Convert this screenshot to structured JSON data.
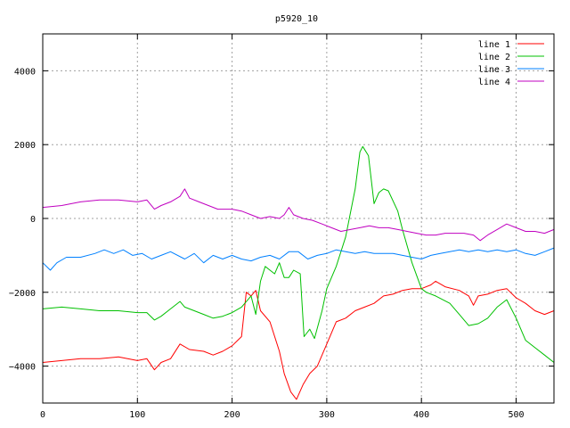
{
  "chart_data": {
    "type": "line",
    "title": "p5920_10",
    "xlabel": "",
    "ylabel": "",
    "xlim": [
      0,
      540
    ],
    "ylim": [
      -5000,
      5000
    ],
    "xticks": [
      0,
      100,
      200,
      300,
      400,
      500
    ],
    "yticks": [
      4000,
      2000,
      0,
      -2000,
      -4000
    ],
    "ytick_labels": [
      "4000",
      "2000",
      "0",
      "−2000",
      "−4000"
    ],
    "grid": true,
    "legend_position": "top-right",
    "series": [
      {
        "name": "line 1",
        "color": "#ff0000",
        "points": [
          [
            0,
            -3900
          ],
          [
            20,
            -3850
          ],
          [
            40,
            -3800
          ],
          [
            60,
            -3800
          ],
          [
            80,
            -3750
          ],
          [
            100,
            -3850
          ],
          [
            110,
            -3800
          ],
          [
            118,
            -4100
          ],
          [
            125,
            -3900
          ],
          [
            135,
            -3800
          ],
          [
            145,
            -3400
          ],
          [
            155,
            -3550
          ],
          [
            170,
            -3600
          ],
          [
            180,
            -3700
          ],
          [
            190,
            -3600
          ],
          [
            200,
            -3450
          ],
          [
            210,
            -3200
          ],
          [
            215,
            -2000
          ],
          [
            220,
            -2100
          ],
          [
            225,
            -1950
          ],
          [
            230,
            -2500
          ],
          [
            240,
            -2800
          ],
          [
            250,
            -3600
          ],
          [
            255,
            -4200
          ],
          [
            262,
            -4700
          ],
          [
            268,
            -4900
          ],
          [
            275,
            -4500
          ],
          [
            282,
            -4200
          ],
          [
            290,
            -4000
          ],
          [
            300,
            -3400
          ],
          [
            310,
            -2800
          ],
          [
            320,
            -2700
          ],
          [
            330,
            -2500
          ],
          [
            340,
            -2400
          ],
          [
            350,
            -2300
          ],
          [
            360,
            -2100
          ],
          [
            370,
            -2050
          ],
          [
            380,
            -1950
          ],
          [
            390,
            -1900
          ],
          [
            400,
            -1900
          ],
          [
            410,
            -1800
          ],
          [
            415,
            -1700
          ],
          [
            425,
            -1850
          ],
          [
            440,
            -1950
          ],
          [
            450,
            -2100
          ],
          [
            455,
            -2350
          ],
          [
            460,
            -2100
          ],
          [
            470,
            -2050
          ],
          [
            480,
            -1950
          ],
          [
            490,
            -1900
          ],
          [
            500,
            -2150
          ],
          [
            510,
            -2300
          ],
          [
            520,
            -2500
          ],
          [
            530,
            -2600
          ],
          [
            540,
            -2500
          ]
        ]
      },
      {
        "name": "line 2",
        "color": "#00c000",
        "points": [
          [
            0,
            -2450
          ],
          [
            20,
            -2400
          ],
          [
            40,
            -2450
          ],
          [
            60,
            -2500
          ],
          [
            80,
            -2500
          ],
          [
            100,
            -2550
          ],
          [
            110,
            -2550
          ],
          [
            118,
            -2750
          ],
          [
            125,
            -2650
          ],
          [
            135,
            -2450
          ],
          [
            145,
            -2250
          ],
          [
            150,
            -2400
          ],
          [
            160,
            -2500
          ],
          [
            170,
            -2600
          ],
          [
            180,
            -2700
          ],
          [
            190,
            -2650
          ],
          [
            200,
            -2550
          ],
          [
            210,
            -2400
          ],
          [
            220,
            -2100
          ],
          [
            225,
            -2600
          ],
          [
            230,
            -1700
          ],
          [
            235,
            -1300
          ],
          [
            240,
            -1400
          ],
          [
            245,
            -1500
          ],
          [
            250,
            -1200
          ],
          [
            255,
            -1600
          ],
          [
            260,
            -1600
          ],
          [
            265,
            -1400
          ],
          [
            272,
            -1500
          ],
          [
            276,
            -3200
          ],
          [
            282,
            -3000
          ],
          [
            287,
            -3250
          ],
          [
            295,
            -2500
          ],
          [
            300,
            -1900
          ],
          [
            310,
            -1300
          ],
          [
            320,
            -500
          ],
          [
            330,
            800
          ],
          [
            335,
            1800
          ],
          [
            338,
            1950
          ],
          [
            344,
            1700
          ],
          [
            350,
            400
          ],
          [
            355,
            700
          ],
          [
            360,
            800
          ],
          [
            365,
            750
          ],
          [
            375,
            200
          ],
          [
            380,
            -300
          ],
          [
            390,
            -1200
          ],
          [
            400,
            -1900
          ],
          [
            405,
            -2000
          ],
          [
            415,
            -2100
          ],
          [
            430,
            -2300
          ],
          [
            440,
            -2600
          ],
          [
            450,
            -2900
          ],
          [
            460,
            -2850
          ],
          [
            470,
            -2700
          ],
          [
            480,
            -2400
          ],
          [
            490,
            -2200
          ],
          [
            500,
            -2700
          ],
          [
            510,
            -3300
          ],
          [
            520,
            -3500
          ],
          [
            530,
            -3700
          ],
          [
            540,
            -3900
          ]
        ]
      },
      {
        "name": "line 3",
        "color": "#0080ff",
        "points": [
          [
            0,
            -1200
          ],
          [
            8,
            -1400
          ],
          [
            15,
            -1200
          ],
          [
            25,
            -1050
          ],
          [
            40,
            -1050
          ],
          [
            55,
            -950
          ],
          [
            65,
            -850
          ],
          [
            75,
            -950
          ],
          [
            85,
            -850
          ],
          [
            95,
            -1000
          ],
          [
            105,
            -950
          ],
          [
            115,
            -1100
          ],
          [
            125,
            -1000
          ],
          [
            135,
            -900
          ],
          [
            150,
            -1100
          ],
          [
            160,
            -950
          ],
          [
            170,
            -1200
          ],
          [
            180,
            -1000
          ],
          [
            190,
            -1100
          ],
          [
            200,
            -1000
          ],
          [
            210,
            -1100
          ],
          [
            220,
            -1150
          ],
          [
            230,
            -1050
          ],
          [
            240,
            -1000
          ],
          [
            250,
            -1100
          ],
          [
            260,
            -900
          ],
          [
            270,
            -900
          ],
          [
            280,
            -1100
          ],
          [
            290,
            -1000
          ],
          [
            300,
            -950
          ],
          [
            310,
            -850
          ],
          [
            320,
            -900
          ],
          [
            330,
            -950
          ],
          [
            340,
            -900
          ],
          [
            350,
            -950
          ],
          [
            360,
            -950
          ],
          [
            370,
            -950
          ],
          [
            380,
            -1000
          ],
          [
            390,
            -1050
          ],
          [
            400,
            -1100
          ],
          [
            410,
            -1000
          ],
          [
            420,
            -950
          ],
          [
            430,
            -900
          ],
          [
            440,
            -850
          ],
          [
            450,
            -900
          ],
          [
            460,
            -850
          ],
          [
            470,
            -900
          ],
          [
            480,
            -850
          ],
          [
            490,
            -900
          ],
          [
            500,
            -850
          ],
          [
            510,
            -950
          ],
          [
            520,
            -1000
          ],
          [
            530,
            -900
          ],
          [
            540,
            -800
          ]
        ]
      },
      {
        "name": "line 4",
        "color": "#c000c0",
        "points": [
          [
            0,
            300
          ],
          [
            20,
            350
          ],
          [
            40,
            450
          ],
          [
            60,
            500
          ],
          [
            80,
            500
          ],
          [
            100,
            450
          ],
          [
            110,
            500
          ],
          [
            118,
            250
          ],
          [
            125,
            350
          ],
          [
            135,
            450
          ],
          [
            145,
            600
          ],
          [
            150,
            800
          ],
          [
            155,
            550
          ],
          [
            165,
            450
          ],
          [
            175,
            350
          ],
          [
            185,
            250
          ],
          [
            200,
            250
          ],
          [
            210,
            200
          ],
          [
            220,
            100
          ],
          [
            230,
            0
          ],
          [
            240,
            50
          ],
          [
            250,
            0
          ],
          [
            255,
            100
          ],
          [
            260,
            300
          ],
          [
            265,
            100
          ],
          [
            275,
            0
          ],
          [
            285,
            -50
          ],
          [
            295,
            -150
          ],
          [
            305,
            -250
          ],
          [
            315,
            -350
          ],
          [
            325,
            -300
          ],
          [
            335,
            -250
          ],
          [
            345,
            -200
          ],
          [
            355,
            -250
          ],
          [
            365,
            -250
          ],
          [
            375,
            -300
          ],
          [
            385,
            -350
          ],
          [
            395,
            -400
          ],
          [
            405,
            -450
          ],
          [
            415,
            -450
          ],
          [
            425,
            -400
          ],
          [
            435,
            -400
          ],
          [
            445,
            -400
          ],
          [
            455,
            -450
          ],
          [
            462,
            -600
          ],
          [
            470,
            -450
          ],
          [
            480,
            -300
          ],
          [
            490,
            -150
          ],
          [
            500,
            -250
          ],
          [
            510,
            -350
          ],
          [
            520,
            -350
          ],
          [
            530,
            -400
          ],
          [
            540,
            -300
          ]
        ]
      }
    ]
  }
}
